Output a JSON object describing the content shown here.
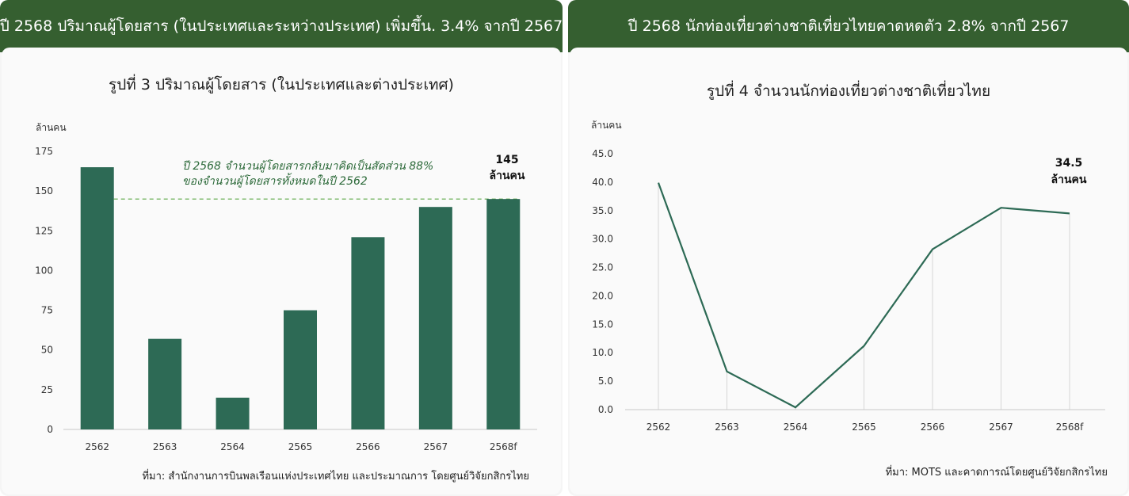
{
  "left_panel": {
    "header": "ปี 2568 ปริมาณผู้โดยสาร (ในประเทศและระหว่างประเทศ) เพิ่มขึ้น. 3.4% จากปี 2567",
    "chart_title": "รูปที่  3 ปริมาณผู้โดยสาร (ในประเทศและต่างประเทศ)",
    "y_unit": "ล้านคน",
    "annotation_line1": "ปี 2568 จำนวนผู้โดยสารกลับมาคิดเป็นสัดส่วน 88%",
    "annotation_line2": "ของจำนวนผู้โดยสารทั้งหมดในปี 2562",
    "last_label_value": "145",
    "last_label_unit": "ล้านคน",
    "source": "ที่มา: สำนักงานการบินพลเรือนแห่งประเทศไทย และประมาณการ โดยศูนย์วิจัยกสิกรไทย"
  },
  "right_panel": {
    "header": "ปี 2568 นักท่องเที่ยวต่างชาติเที่ยวไทยคาดหดตัว 2.8% จากปี 2567",
    "chart_title": "รูปที่ 4 จำนวนนักท่องเที่ยวต่างชาติเที่ยวไทย",
    "y_unit": "ล้านคน",
    "last_label_value": "34.5",
    "last_label_unit": "ล้านคน",
    "source": "ที่มา: MOTS และคาดการณ์โดยศูนย์วิจัยกสิกรไทย"
  },
  "chart_data": [
    {
      "type": "bar",
      "categories": [
        "2562",
        "2563",
        "2564",
        "2565",
        "2566",
        "2567",
        "2568f"
      ],
      "values": [
        165,
        57,
        20,
        75,
        121,
        140,
        145
      ],
      "ylabel": "ล้านคน",
      "ylim": [
        0,
        175
      ],
      "yticks": [
        "0",
        "25",
        "50",
        "75",
        "100",
        "125",
        "150",
        "175"
      ],
      "reference_line_value": 145,
      "bar_color": "#2d6a55",
      "reference_line_color": "#5aa845"
    },
    {
      "type": "line",
      "categories": [
        "2562",
        "2563",
        "2564",
        "2565",
        "2566",
        "2567",
        "2568f"
      ],
      "values": [
        39.9,
        6.7,
        0.4,
        11.2,
        28.2,
        35.5,
        34.5
      ],
      "ylabel": "ล้านคน",
      "ylim": [
        0,
        45
      ],
      "yticks": [
        "0.0",
        "5.0",
        "10.0",
        "15.0",
        "20.0",
        "25.0",
        "30.0",
        "35.0",
        "40.0",
        "45.0"
      ],
      "line_color": "#2d6a55",
      "grid": "vertical"
    }
  ]
}
